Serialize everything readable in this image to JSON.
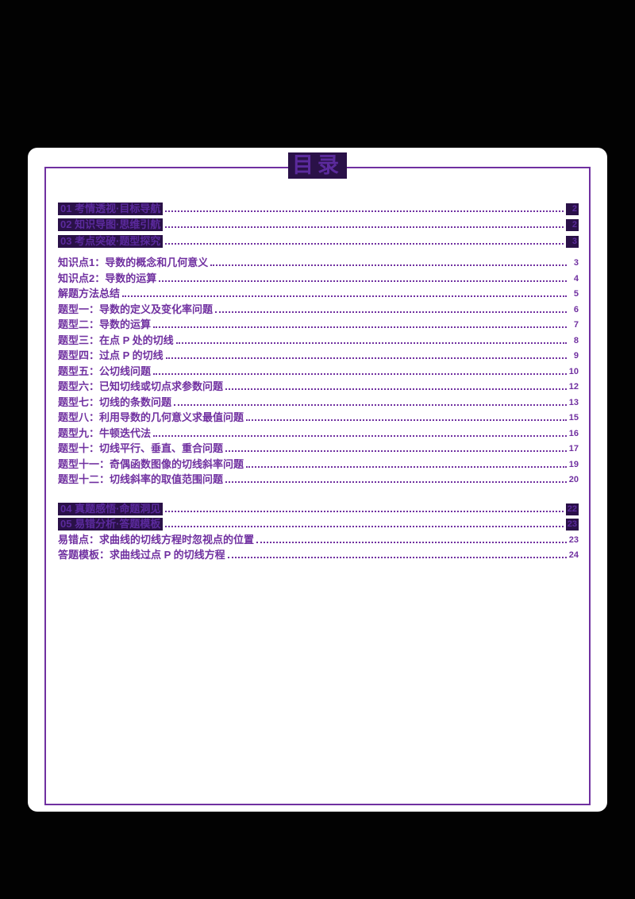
{
  "document": {
    "title": "目录"
  },
  "colors": {
    "accent": "#7030A0",
    "highlight_bg": "#2A1148",
    "highlight_text": "#5B2A9D",
    "page_bg": "#FFFFFF",
    "canvas_bg": "#000000"
  },
  "toc": {
    "entries": [
      {
        "label": "01 考情透视·目标导航",
        "page": "2",
        "highlight": true
      },
      {
        "label": "02 知识导图·思维引航",
        "page": "2",
        "highlight": true
      },
      {
        "label": "03 考点突破·题型探究",
        "page": "3",
        "highlight": true
      },
      {
        "label": "知识点1：导数的概念和几何意义",
        "page": "3",
        "highlight": false
      },
      {
        "label": "知识点2：导数的运算",
        "page": "4",
        "highlight": false
      },
      {
        "label": "解题方法总结",
        "page": "5",
        "highlight": false
      },
      {
        "label": "题型一：导数的定义及变化率问题",
        "page": "6",
        "highlight": false
      },
      {
        "label": "题型二：导数的运算",
        "page": "7",
        "highlight": false
      },
      {
        "label": "题型三：在点 P 处的切线",
        "page": "8",
        "highlight": false
      },
      {
        "label": "题型四：过点 P 的切线",
        "page": "9",
        "highlight": false
      },
      {
        "label": "题型五：公切线问题",
        "page": "10",
        "highlight": false
      },
      {
        "label": "题型六：已知切线或切点求参数问题",
        "page": "12",
        "highlight": false
      },
      {
        "label": "题型七：切线的条数问题",
        "page": "13",
        "highlight": false
      },
      {
        "label": "题型八：利用导数的几何意义求最值问题",
        "page": "15",
        "highlight": false
      },
      {
        "label": "题型九：牛顿迭代法",
        "page": "16",
        "highlight": false
      },
      {
        "label": "题型十：切线平行、垂直、重合问题",
        "page": "17",
        "highlight": false
      },
      {
        "label": "题型十一：奇偶函数图像的切线斜率问题",
        "page": "19",
        "highlight": false
      },
      {
        "label": "题型十二：切线斜率的取值范围问题",
        "page": "20",
        "highlight": false
      },
      {
        "label": "04 真题感悟·命题洞见",
        "page": "22",
        "highlight": true
      },
      {
        "label": "05 易错分析·答题模板",
        "page": "23",
        "highlight": true
      },
      {
        "label": "易错点：求曲线的切线方程时忽视点的位置",
        "page": "23",
        "highlight": false
      },
      {
        "label": "答题模板：求曲线过点 P 的切线方程",
        "page": "24",
        "highlight": false
      }
    ]
  }
}
